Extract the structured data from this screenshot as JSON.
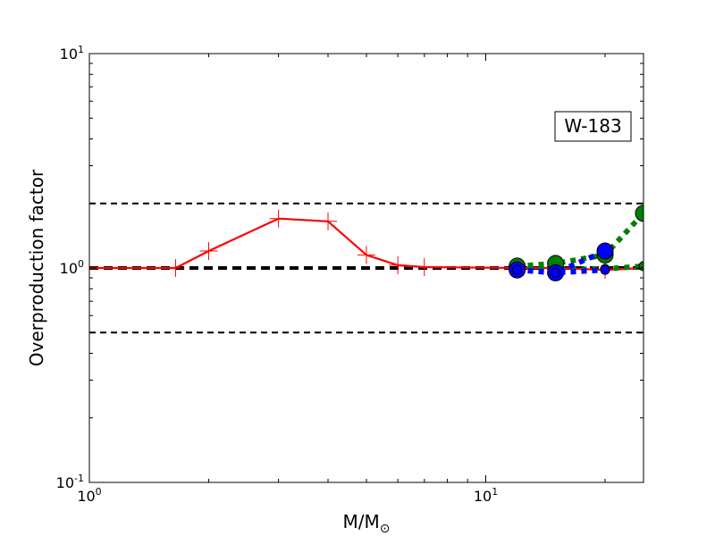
{
  "chart_data": {
    "type": "line",
    "title": "",
    "xlabel": "M/M⊙",
    "ylabel": "Overproduction factor",
    "x_scale": "log",
    "y_scale": "log",
    "xlim": [
      1,
      25
    ],
    "ylim": [
      0.1,
      10
    ],
    "x_ticks": [
      {
        "value": 1,
        "base": "10",
        "exp": "0"
      },
      {
        "value": 10,
        "base": "10",
        "exp": "1"
      }
    ],
    "y_ticks": [
      {
        "value": 0.1,
        "base": "10",
        "exp": "-1"
      },
      {
        "value": 1,
        "base": "10",
        "exp": "0"
      },
      {
        "value": 10,
        "base": "10",
        "exp": "1"
      }
    ],
    "grid": false,
    "annotation": "W-183",
    "reference_lines": [
      {
        "y": 2.0,
        "style": "dashed",
        "color": "#000000",
        "width": 2
      },
      {
        "y": 1.0,
        "style": "dashed",
        "color": "#000000",
        "width": 4
      },
      {
        "y": 0.5,
        "style": "dashed",
        "color": "#000000",
        "width": 2
      }
    ],
    "series": [
      {
        "color": "#ff0000",
        "style": "solid",
        "width": 2.2,
        "marker": "plus",
        "points": [
          {
            "x": 1.0,
            "y": 1.0
          },
          {
            "x": 1.65,
            "y": 1.0
          },
          {
            "x": 2.0,
            "y": 1.2
          },
          {
            "x": 3.0,
            "y": 1.7
          },
          {
            "x": 4.0,
            "y": 1.65
          },
          {
            "x": 5.0,
            "y": 1.15
          },
          {
            "x": 6.0,
            "y": 1.03
          },
          {
            "x": 7.0,
            "y": 1.01
          },
          {
            "x": 12.0,
            "y": 1.0
          },
          {
            "x": 15.0,
            "y": 1.0
          },
          {
            "x": 20.0,
            "y": 0.98
          },
          {
            "x": 25.0,
            "y": 1.0
          }
        ]
      },
      {
        "color": "#008000",
        "style": "dotted",
        "width": 6,
        "marker": "circle",
        "points": [
          {
            "x": 12.0,
            "y": 1.02
          },
          {
            "x": 15.0,
            "y": 1.05
          },
          {
            "x": 20.0,
            "y": 1.15
          },
          {
            "x": 25.0,
            "y": 1.8
          }
        ]
      },
      {
        "color": "#008000",
        "style": "dotted",
        "width": 6,
        "marker": "circle-small",
        "points": [
          {
            "x": 12.0,
            "y": 1.0
          },
          {
            "x": 15.0,
            "y": 0.98
          },
          {
            "x": 20.0,
            "y": 0.99
          },
          {
            "x": 25.0,
            "y": 1.02
          }
        ]
      },
      {
        "color": "#0000ff",
        "style": "dotted",
        "width": 6,
        "marker": "circle",
        "points": [
          {
            "x": 12.0,
            "y": 0.98
          },
          {
            "x": 15.0,
            "y": 0.95
          },
          {
            "x": 20.0,
            "y": 1.2
          }
        ]
      },
      {
        "color": "#0000ff",
        "style": "dotted",
        "width": 6,
        "marker": "circle-small",
        "points": [
          {
            "x": 12.0,
            "y": 0.98
          },
          {
            "x": 15.0,
            "y": 0.95
          },
          {
            "x": 20.0,
            "y": 0.98
          }
        ]
      }
    ]
  }
}
